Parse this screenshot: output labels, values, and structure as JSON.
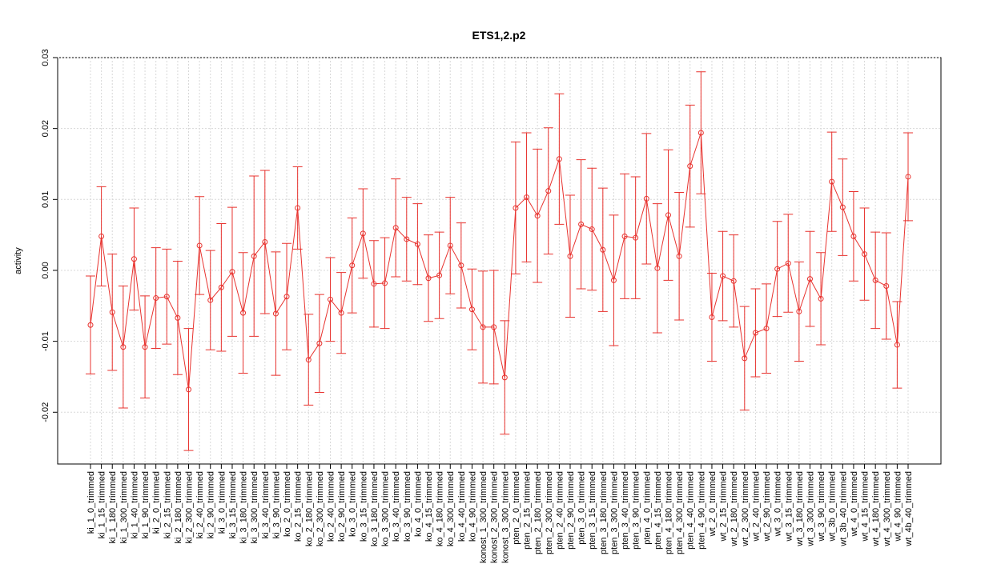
{
  "chart_data": {
    "type": "line",
    "title": "ETS1,2.p2",
    "ylabel": "activity",
    "categories": [
      "ki_1_0_trimmed",
      "ki_1_15_trimmed",
      "ki_1_180_trimmed",
      "ki_1_300_trimmed",
      "ki_1_40_trimmed",
      "ki_1_90_trimmed",
      "ki_2_0_trimmed",
      "ki_2_15_trimmed",
      "ki_2_180_trimmed",
      "ki_2_300_trimmed",
      "ki_2_40_trimmed",
      "ki_2_90_trimmed",
      "ki_3_0_trimmed",
      "ki_3_15_trimmed",
      "ki_3_180_trimmed",
      "ki_3_300_trimmed",
      "ki_3_40_trimmed",
      "ki_3_90_trimmed",
      "ko_2_0_trimmed",
      "ko_2_15_trimmed",
      "ko_2_180_trimmed",
      "ko_2_300_trimmed",
      "ko_2_40_trimmed",
      "ko_2_90_trimmed",
      "ko_3_0_trimmed",
      "ko_3_15_trimmed",
      "ko_3_180_trimmed",
      "ko_3_300_trimmed",
      "ko_3_40_trimmed",
      "ko_3_90_trimmed",
      "ko_4_0_trimmed",
      "ko_4_15_trimmed",
      "ko_4_180_trimmed",
      "ko_4_300_trimmed",
      "ko_4_40_trimmed",
      "ko_4_90_trimmed",
      "konost_1_300_trimmed",
      "konost_2_300_trimmed",
      "konost_3_300_trimmed",
      "pten_2_0_trimmed",
      "pten_2_15_trimmed",
      "pten_2_180_trimmed",
      "pten_2_300_trimmed",
      "pten_2_40_trimmed",
      "pten_2_90_trimmed",
      "pten_3_0_trimmed",
      "pten_3_15_trimmed",
      "pten_3_180_trimmed",
      "pten_3_300_trimmed",
      "pten_3_40_trimmed",
      "pten_3_90_trimmed",
      "pten_4_0_trimmed",
      "pten_4_15_trimmed",
      "pten_4_180_trimmed",
      "pten_4_300_trimmed",
      "pten_4_40_trimmed",
      "pten_4_90_trimmed",
      "wt_2_0_trimmed",
      "wt_2_15_trimmed",
      "wt_2_180_trimmed",
      "wt_2_300_trimmed",
      "wt_2_40_trimmed",
      "wt_2_90_trimmed",
      "wt_3_0_trimmed",
      "wt_3_15_trimmed",
      "wt_3_180_trimmed",
      "wt_3_300_trimmed",
      "wt_3_90_trimmed",
      "wt_3b_0_trimmed",
      "wt_3b_40_trimmed",
      "wt_4_0_trimmed",
      "wt_4_15_trimmed",
      "wt_4_180_trimmed",
      "wt_4_300_trimmed",
      "wt_4_90_trimmed",
      "wt_4b_40_trimmed"
    ],
    "values": [
      -0.0077,
      0.0048,
      -0.0059,
      -0.0108,
      0.0016,
      -0.0108,
      -0.0039,
      -0.0037,
      -0.0067,
      -0.0168,
      0.0035,
      -0.0042,
      -0.0024,
      -0.0002,
      -0.006,
      0.002,
      0.004,
      -0.0061,
      -0.0037,
      0.0088,
      -0.0126,
      -0.0103,
      -0.0041,
      -0.006,
      0.0007,
      0.0052,
      -0.0019,
      -0.0018,
      0.006,
      0.0044,
      0.0037,
      -0.0011,
      -0.0007,
      0.0035,
      0.0007,
      -0.0055,
      -0.008,
      -0.008,
      -0.0151,
      0.0088,
      0.0103,
      0.0077,
      0.0112,
      0.0157,
      0.002,
      0.0065,
      0.0058,
      0.0029,
      -0.0014,
      0.0048,
      0.0046,
      0.0101,
      0.0003,
      0.0078,
      0.002,
      0.0147,
      0.0194,
      -0.0066,
      -0.0008,
      -0.0015,
      -0.0124,
      -0.0088,
      -0.0082,
      0.0002,
      0.001,
      -0.0058,
      -0.0012,
      -0.004,
      0.0125,
      0.0089,
      0.0048,
      0.0023,
      -0.0014,
      -0.0022,
      -0.0105,
      0.0132
    ],
    "errors": [
      0.0069,
      0.007,
      0.0082,
      0.0086,
      0.0072,
      0.0072,
      0.0071,
      0.0067,
      0.008,
      0.0086,
      0.0069,
      0.007,
      0.009,
      0.0091,
      0.0085,
      0.0113,
      0.0101,
      0.0087,
      0.0075,
      0.0058,
      0.0064,
      0.0069,
      0.0059,
      0.0057,
      0.0067,
      0.0063,
      0.0061,
      0.0064,
      0.0069,
      0.0059,
      0.0057,
      0.0061,
      0.0061,
      0.0068,
      0.006,
      0.0057,
      0.0079,
      0.008,
      0.008,
      0.0093,
      0.0091,
      0.0094,
      0.0089,
      0.0092,
      0.0086,
      0.0091,
      0.0086,
      0.0087,
      0.0092,
      0.0088,
      0.0086,
      0.0092,
      0.0091,
      0.0092,
      0.009,
      0.0086,
      0.0086,
      0.0062,
      0.0063,
      0.0065,
      0.0073,
      0.0062,
      0.0063,
      0.0067,
      0.0069,
      0.007,
      0.0067,
      0.0065,
      0.007,
      0.0068,
      0.0063,
      0.0065,
      0.0068,
      0.0075,
      0.0061,
      0.0062
    ],
    "color": "#e8332f",
    "ylim": [
      -0.0273,
      0.03
    ],
    "yticks": [
      -0.02,
      -0.01,
      {
        "value": 0,
        "label": "0.00"
      },
      0.01,
      0.02,
      0.03
    ],
    "grid": true
  }
}
